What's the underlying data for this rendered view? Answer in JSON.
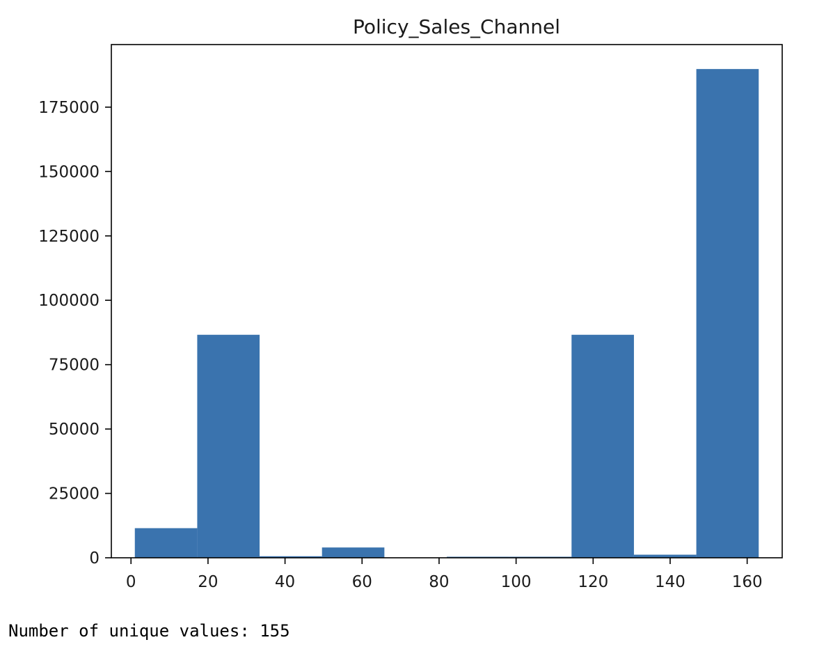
{
  "chart_data": {
    "type": "bar",
    "title": "Policy_Sales_Channel",
    "xlabel": "",
    "ylabel": "",
    "histogram": true,
    "bin_edges": [
      1.0,
      17.2,
      33.4,
      49.6,
      65.8,
      82.0,
      98.2,
      114.4,
      130.6,
      146.8,
      163.0
    ],
    "values": [
      11500,
      86600,
      600,
      4000,
      100,
      400,
      400,
      86600,
      1200,
      189800
    ],
    "xlim": [
      -5.1,
      169.1
    ],
    "ylim": [
      0,
      199300
    ],
    "x_ticks": [
      0,
      20,
      40,
      60,
      80,
      100,
      120,
      140,
      160
    ],
    "y_ticks": [
      0,
      25000,
      50000,
      75000,
      100000,
      125000,
      150000,
      175000
    ],
    "bar_color": "#3a73ae",
    "grid": false
  },
  "output": {
    "unique_values_line": "Number of unique values: 155"
  }
}
